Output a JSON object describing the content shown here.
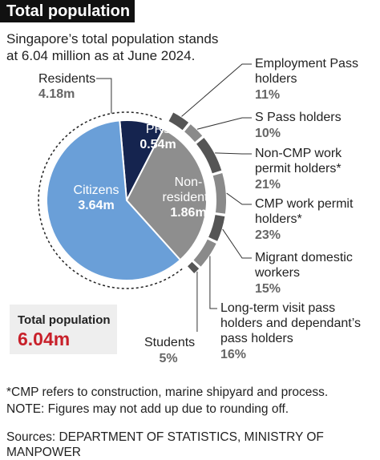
{
  "chart_data": {
    "type": "pie",
    "title": "Total population",
    "subtitle": "Singapore’s total population stands at 6.04 million as at June 2024.",
    "categories": [
      "Citizens",
      "PRs",
      "Non-residents"
    ],
    "values": [
      3.64,
      0.54,
      1.86
    ],
    "value_labels": [
      "3.64m",
      "0.54m",
      "1.86m"
    ],
    "colors": [
      "#6a9fd8",
      "#15244f",
      "#8e8e8e"
    ],
    "group": {
      "name": "Residents",
      "value": 4.18,
      "value_label": "4.18m"
    },
    "breakdown": {
      "categories": [
        "Employment Pass holders",
        "S Pass holders",
        "Non-CMP work permit holders*",
        "CMP work permit holders*",
        "Migrant domestic workers",
        "Long-term visit pass holders and dependant’s pass holders",
        "Students"
      ],
      "values": [
        11,
        10,
        21,
        23,
        15,
        16,
        5
      ],
      "value_labels": [
        "11%",
        "10%",
        "21%",
        "23%",
        "15%",
        "16%",
        "5%"
      ],
      "colors": [
        "#555555",
        "#8a8a8a"
      ]
    },
    "total": {
      "label": "Total population",
      "value": 6.04,
      "value_label": "6.04m"
    },
    "notes": [
      "*CMP refers to construction, marine shipyard and process.",
      "NOTE: Figures may not add up due to rounding off."
    ],
    "source": "Sources: DEPARTMENT OF STATISTICS, MINISTRY OF MANPOWER"
  }
}
